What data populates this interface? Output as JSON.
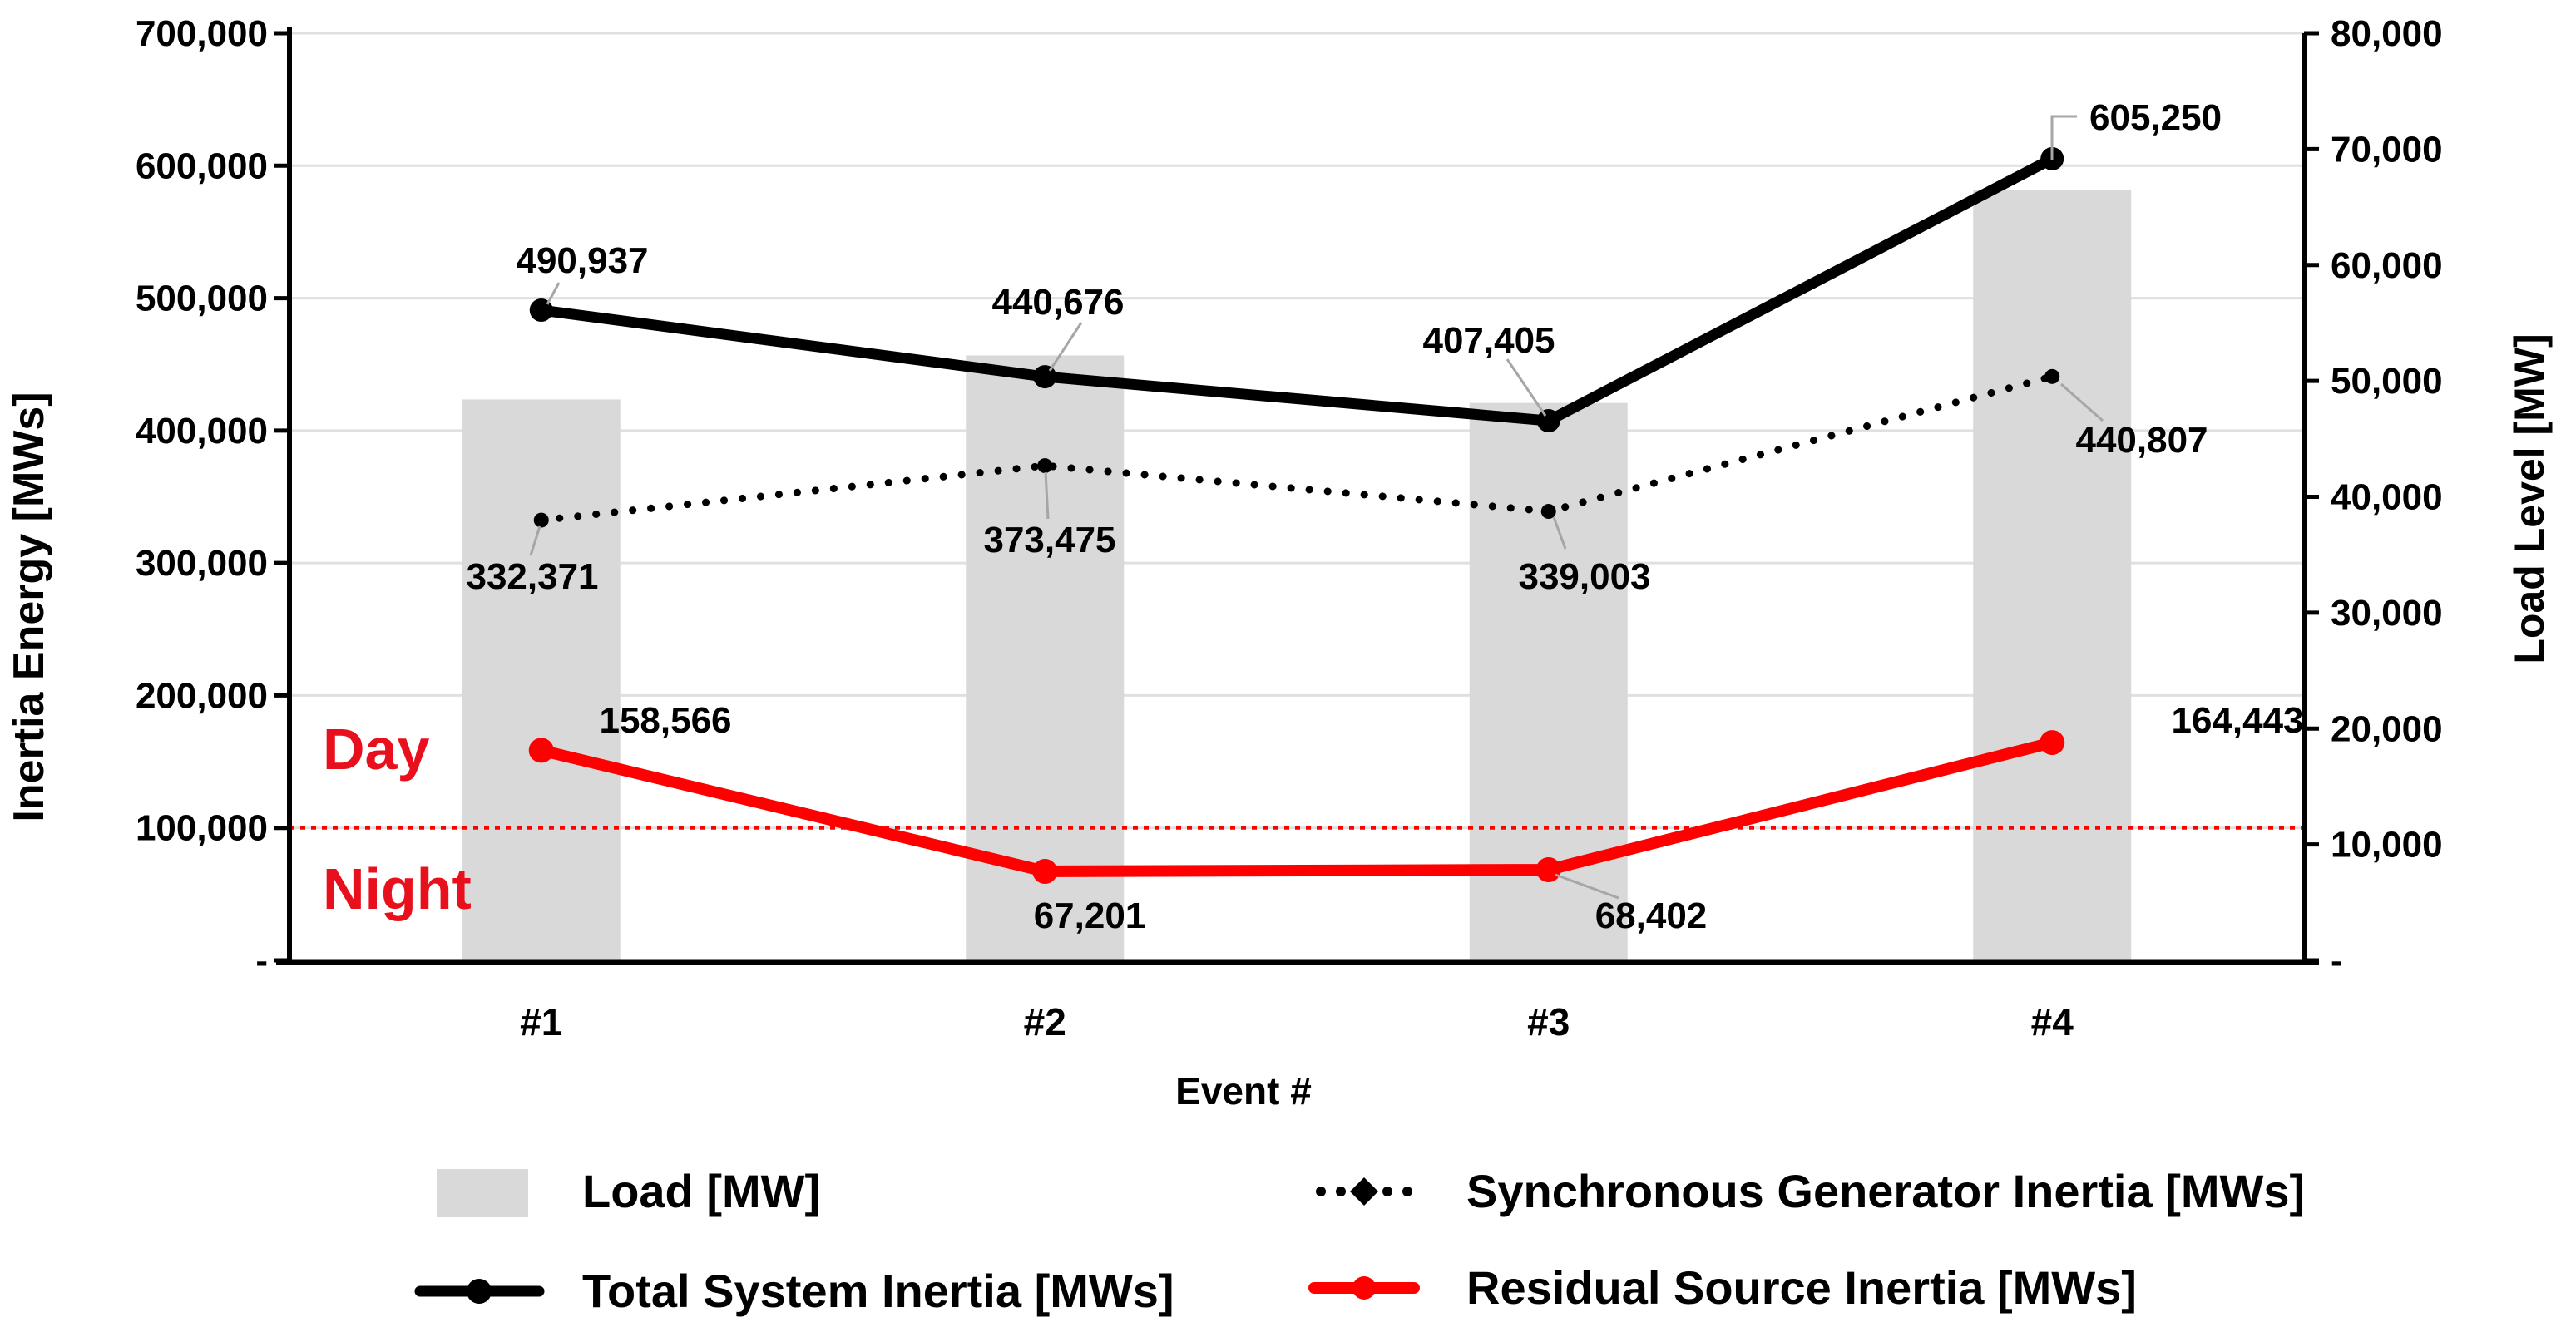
{
  "chart_data": {
    "type": "bar+line combo",
    "categories": [
      "#1",
      "#2",
      "#3",
      "#4"
    ],
    "x_axis_title": "Event #",
    "left_axis": {
      "title": "Inertia Energy [MWs]",
      "min": 0,
      "max": 700000,
      "step": 100000,
      "tick_labels": [
        "-",
        "100,000",
        "200,000",
        "300,000",
        "400,000",
        "500,000",
        "600,000",
        "700,000"
      ]
    },
    "right_axis": {
      "title": "Load Level [MW]",
      "min": 0,
      "max": 80000,
      "step": 10000,
      "tick_labels": [
        "-",
        "10,000",
        "20,000",
        "30,000",
        "40,000",
        "50,000",
        "60,000",
        "70,000",
        "80,000"
      ]
    },
    "series": [
      {
        "name": "Load [MW]",
        "type": "bar",
        "axis": "right",
        "color": "#d9d9d9",
        "values": [
          48400,
          52200,
          48100,
          66500
        ]
      },
      {
        "name": "Synchronous Generator Inertia [MWs]",
        "type": "line",
        "style": "dotted",
        "axis": "left",
        "color": "#000000",
        "values": [
          332371,
          373475,
          339003,
          440807
        ],
        "labels": [
          "332,371",
          "373,475",
          "339,003",
          "440,807"
        ]
      },
      {
        "name": "Total System Inertia [MWs]",
        "type": "line",
        "style": "solid",
        "axis": "left",
        "color": "#000000",
        "values": [
          490937,
          440676,
          407405,
          605250
        ],
        "labels": [
          "490,937",
          "440,676",
          "407,405",
          "605,250"
        ]
      },
      {
        "name": "Residual Source Inertia [MWs]",
        "type": "line",
        "style": "solid",
        "axis": "left",
        "color": "#fe0000",
        "values": [
          158566,
          67201,
          68402,
          164443
        ],
        "labels": [
          "158,566",
          "67,201",
          "68,402",
          "164,443"
        ]
      }
    ],
    "reference_line": {
      "axis": "left",
      "value": 100000,
      "style": "dotted",
      "color": "#fe0000",
      "label_above": "Day",
      "label_below": "Night",
      "label_color": "#e8101c"
    },
    "legend": [
      {
        "label": "Load [MW]",
        "swatch": "gray-bar"
      },
      {
        "label": "Synchronous Generator Inertia [MWs]",
        "swatch": "black-dotted-line"
      },
      {
        "label": "Total System Inertia [MWs]",
        "swatch": "black-solid-line"
      },
      {
        "label": "Residual Source Inertia [MWs]",
        "swatch": "red-solid-line"
      }
    ],
    "layout": {
      "grid": "horizontal-major",
      "legend_position": "bottom",
      "colors": {
        "bar": "#d9d9d9",
        "grid": "#e0e0e0",
        "black": "#000000",
        "red": "#fe0000",
        "leader": "#a6a6a6"
      }
    }
  }
}
